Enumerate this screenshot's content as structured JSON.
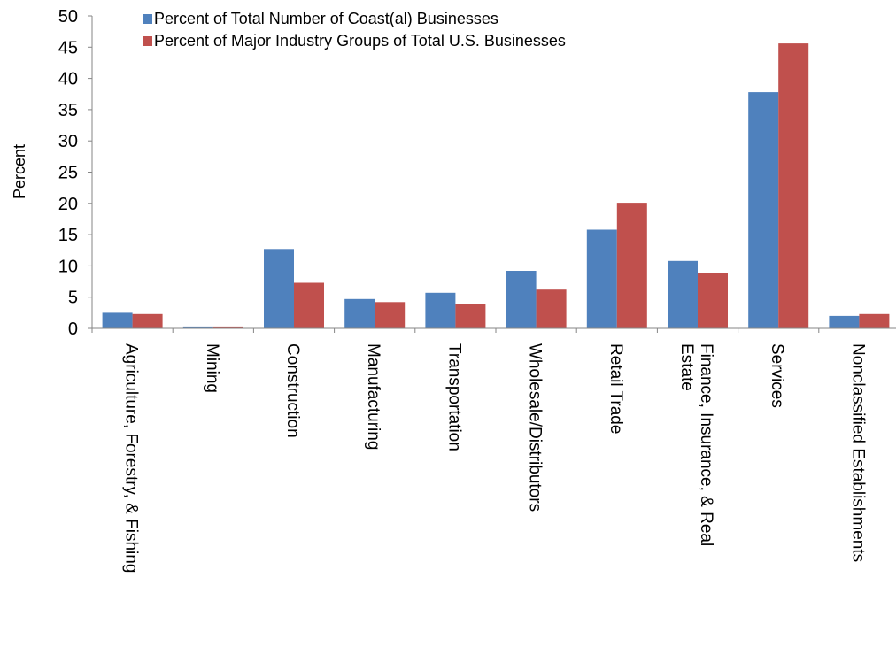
{
  "chart_data": {
    "type": "bar",
    "title": "",
    "xlabel": "",
    "ylabel": "Percent",
    "ylim": [
      0,
      50
    ],
    "yticks": [
      "0",
      "5",
      "10",
      "15",
      "20",
      "25",
      "30",
      "35",
      "40",
      "45",
      "50"
    ],
    "grid": false,
    "legend_position": "top-left",
    "categories": [
      [
        "Agriculture, Forestry, & Fishing"
      ],
      [
        "Mining"
      ],
      [
        "Construction"
      ],
      [
        "Manufacturing"
      ],
      [
        "Transportation"
      ],
      [
        "Wholesale/Distributors"
      ],
      [
        "Retail Trade"
      ],
      [
        "Finance, Insurance, & Real",
        "Estate"
      ],
      [
        "Services"
      ],
      [
        "Nonclassified Establishments"
      ]
    ],
    "series": [
      {
        "name": "Percent of Total Number of Coast(al) Businesses",
        "color": "#4f81bd",
        "values": [
          2.5,
          0.3,
          12.7,
          4.7,
          5.7,
          9.2,
          15.8,
          10.8,
          37.8,
          2.0
        ]
      },
      {
        "name": "Percent of Major Industry Groups of Total U.S. Businesses",
        "color": "#c0504d",
        "values": [
          2.3,
          0.3,
          7.3,
          4.2,
          3.9,
          6.2,
          20.1,
          8.9,
          45.6,
          2.3
        ]
      }
    ]
  }
}
